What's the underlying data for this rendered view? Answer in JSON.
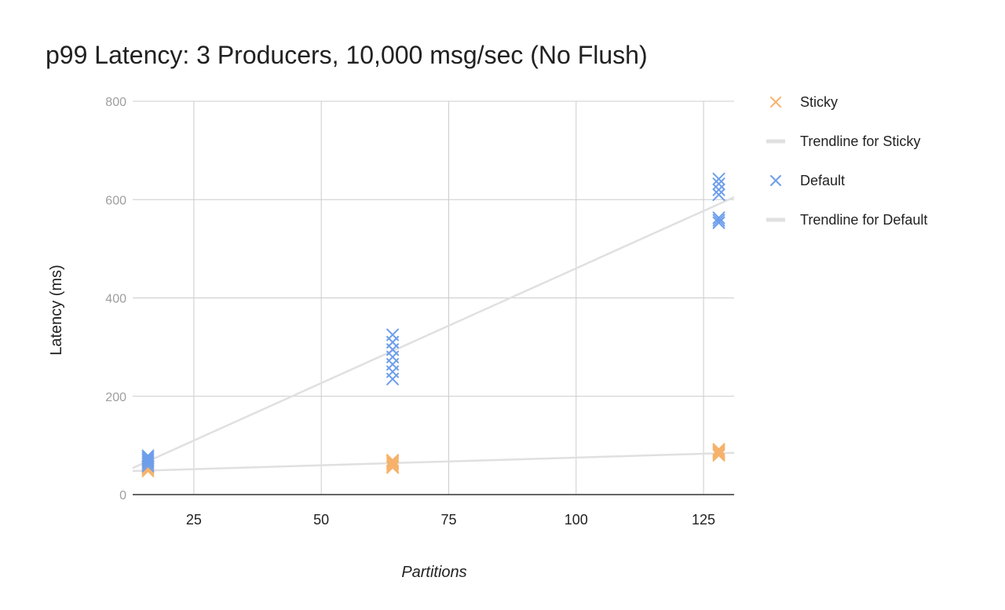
{
  "chart_data": {
    "type": "scatter",
    "title": "p99 Latency: 3 Producers, 10,000 msg/sec (No Flush)",
    "xlabel": "Partitions",
    "ylabel": "Latency (ms)",
    "xlim": [
      13,
      131
    ],
    "ylim": [
      0,
      800
    ],
    "xticks": [
      25,
      50,
      75,
      100,
      125
    ],
    "yticks": [
      0,
      200,
      400,
      600,
      800
    ],
    "grid": true,
    "legend_position": "right",
    "series": [
      {
        "name": "Sticky",
        "marker": "x",
        "color": "#f6b26b",
        "points": [
          [
            16,
            48
          ],
          [
            16,
            52
          ],
          [
            16,
            55
          ],
          [
            16,
            58
          ],
          [
            16,
            62
          ],
          [
            64,
            55
          ],
          [
            64,
            58
          ],
          [
            64,
            62
          ],
          [
            64,
            65
          ],
          [
            64,
            68
          ],
          [
            64,
            70
          ],
          [
            128,
            80
          ],
          [
            128,
            83
          ],
          [
            128,
            86
          ],
          [
            128,
            89
          ],
          [
            128,
            92
          ]
        ]
      },
      {
        "name": "Trendline for Sticky",
        "type": "trendline",
        "color": "#e0e0e0",
        "x": [
          13,
          131
        ],
        "y": [
          48,
          85
        ]
      },
      {
        "name": "Default",
        "marker": "x",
        "color": "#6d9eeb",
        "points": [
          [
            16,
            58
          ],
          [
            16,
            63
          ],
          [
            16,
            67
          ],
          [
            16,
            71
          ],
          [
            16,
            75
          ],
          [
            16,
            79
          ],
          [
            64,
            235
          ],
          [
            64,
            250
          ],
          [
            64,
            265
          ],
          [
            64,
            280
          ],
          [
            64,
            295
          ],
          [
            64,
            310
          ],
          [
            64,
            325
          ],
          [
            128,
            553
          ],
          [
            128,
            558
          ],
          [
            128,
            563
          ],
          [
            128,
            610
          ],
          [
            128,
            620
          ],
          [
            128,
            632
          ],
          [
            128,
            642
          ]
        ]
      },
      {
        "name": "Trendline for Default",
        "type": "trendline",
        "color": "#e0e0e0",
        "x": [
          13,
          131
        ],
        "y": [
          54,
          605
        ]
      }
    ]
  }
}
